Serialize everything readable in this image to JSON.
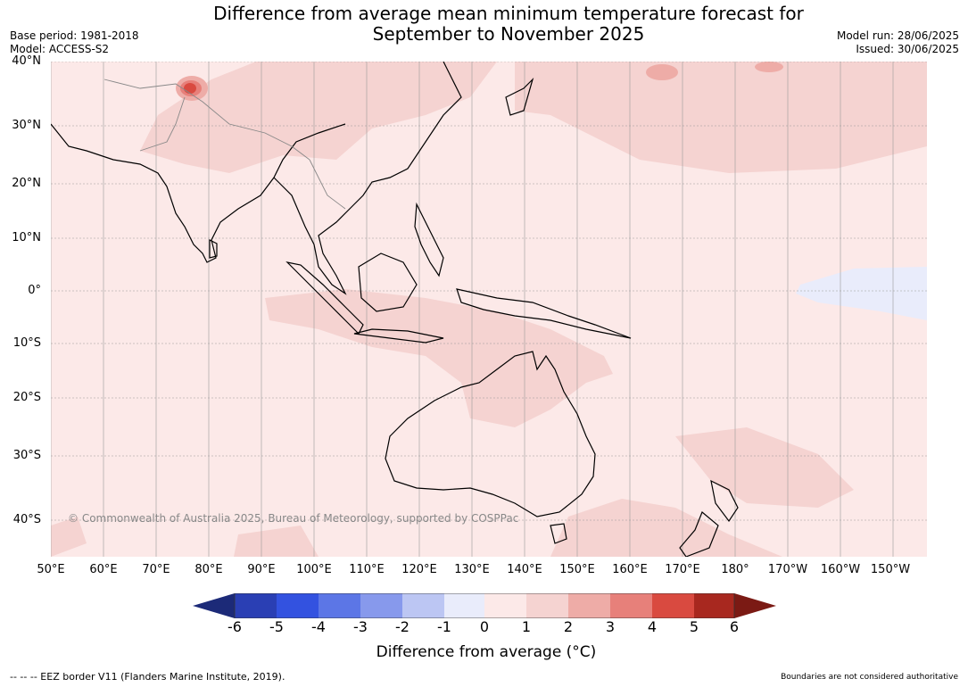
{
  "header": {
    "title_line1": "Difference from average mean minimum temperature forecast for",
    "title_line2": "September to November 2025",
    "base_period": "Base period: 1981-2018",
    "model": "Model: ACCESS-S2",
    "model_run": "Model run: 28/06/2025",
    "issued": "Issued: 30/06/2025"
  },
  "map": {
    "lat_labels": [
      "40°N",
      "30°N",
      "20°N",
      "10°N",
      "0°",
      "10°S",
      "20°S",
      "30°S",
      "40°S"
    ],
    "lon_labels": [
      "50°E",
      "60°E",
      "70°E",
      "80°E",
      "90°E",
      "100°E",
      "110°E",
      "120°E",
      "130°E",
      "140°E",
      "150°E",
      "160°E",
      "170°E",
      "180°",
      "170°W",
      "160°W",
      "150°W"
    ],
    "copyright": "© Commonwealth of Australia 2025, Bureau of Meteorology, supported by COSPPac"
  },
  "colorbar": {
    "ticks": [
      "-6",
      "-5",
      "-4",
      "-3",
      "-2",
      "-1",
      "0",
      "1",
      "2",
      "3",
      "4",
      "5",
      "6"
    ],
    "colors": [
      "#1c2a78",
      "#2a3fb4",
      "#3352e0",
      "#5c76e6",
      "#8799ec",
      "#bcc6f3",
      "#e9ecfb",
      "#fce9e8",
      "#f5d3d1",
      "#eeaca7",
      "#e7807a",
      "#d94a40",
      "#a8281f",
      "#7b1a14"
    ],
    "label": "Difference from average (°C)"
  },
  "footer": {
    "eez": "--  --  -- EEZ border V11 (Flanders Marine Institute, 2019).",
    "boundaries": "Boundaries are not considered authoritative"
  }
}
